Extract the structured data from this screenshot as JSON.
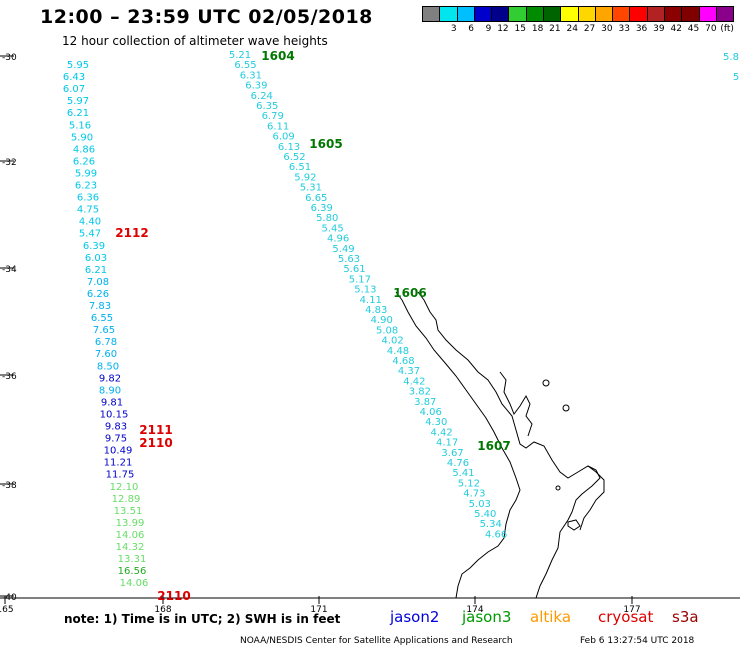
{
  "header": {
    "title": "12:00 – 23:59 UTC 02/05/2018",
    "subtitle": "12 hour collection of altimeter wave heights"
  },
  "legend": {
    "colors": [
      "#808080",
      "#00e5ee",
      "#00bfff",
      "#0000cd",
      "#00008b",
      "#32cd32",
      "#008b00",
      "#006400",
      "#ffff00",
      "#ffd700",
      "#ffa500",
      "#ff4500",
      "#ff0000",
      "#b22222",
      "#8b0000",
      "#800000",
      "#ff00ff",
      "#8b008b"
    ],
    "ticks": [
      "3",
      "6",
      "9",
      "12",
      "15",
      "18",
      "21",
      "24",
      "27",
      "30",
      "33",
      "36",
      "39",
      "42",
      "45",
      "70",
      "(ft)"
    ]
  },
  "axes": {
    "lat_labels": [
      "-30",
      "-32",
      "-34",
      "-36",
      "-38",
      "-40"
    ],
    "lon_labels": [
      "165",
      "168",
      "171",
      "174",
      "177"
    ]
  },
  "tracks": {
    "left_column": [
      {
        "v": "5.95",
        "c": "#00c8e8"
      },
      {
        "v": "6.43",
        "c": "#00c8e8"
      },
      {
        "v": "6.07",
        "c": "#00c8e8"
      },
      {
        "v": "5.97",
        "c": "#00c8e8"
      },
      {
        "v": "6.21",
        "c": "#00c8e8"
      },
      {
        "v": "5.16",
        "c": "#00c8e8"
      },
      {
        "v": "5.90",
        "c": "#00c8e8"
      },
      {
        "v": "4.86",
        "c": "#00c8e8"
      },
      {
        "v": "6.26",
        "c": "#00c8e8"
      },
      {
        "v": "5.99",
        "c": "#00c8e8"
      },
      {
        "v": "6.23",
        "c": "#00c8e8"
      },
      {
        "v": "6.36",
        "c": "#00c8e8"
      },
      {
        "v": "4.75",
        "c": "#00c8e8"
      },
      {
        "v": "4.40",
        "c": "#00c8e8"
      },
      {
        "v": "5.47",
        "c": "#00c8e8"
      },
      {
        "v": "6.39",
        "c": "#00c8e8"
      },
      {
        "v": "6.03",
        "c": "#00c8e8"
      },
      {
        "v": "6.21",
        "c": "#00c8e8"
      },
      {
        "v": "7.08",
        "c": "#00b0f0"
      },
      {
        "v": "6.26",
        "c": "#00b0f0"
      },
      {
        "v": "7.83",
        "c": "#00b0f0"
      },
      {
        "v": "6.55",
        "c": "#00b0f0"
      },
      {
        "v": "7.65",
        "c": "#00b0f0"
      },
      {
        "v": "6.78",
        "c": "#00b0f0"
      },
      {
        "v": "7.60",
        "c": "#00b0f0"
      },
      {
        "v": "8.50",
        "c": "#00b0f0"
      },
      {
        "v": "9.82",
        "c": "#0000cd"
      },
      {
        "v": "8.90",
        "c": "#00b0f0"
      },
      {
        "v": "9.81",
        "c": "#0000cd"
      },
      {
        "v": "10.15",
        "c": "#0000cd"
      },
      {
        "v": "9.83",
        "c": "#0000cd"
      },
      {
        "v": "9.75",
        "c": "#0000cd"
      },
      {
        "v": "10.49",
        "c": "#0000cd"
      },
      {
        "v": "11.21",
        "c": "#0000cd"
      },
      {
        "v": "11.75",
        "c": "#0000cd"
      },
      {
        "v": "12.10",
        "c": "#66dd66"
      },
      {
        "v": "12.89",
        "c": "#66dd66"
      },
      {
        "v": "13.51",
        "c": "#66dd66"
      },
      {
        "v": "13.99",
        "c": "#66dd66"
      },
      {
        "v": "14.06",
        "c": "#66dd66"
      },
      {
        "v": "14.32",
        "c": "#66dd66"
      },
      {
        "v": "13.31",
        "c": "#66dd66"
      },
      {
        "v": "16.56",
        "c": "#22aa22"
      },
      {
        "v": "14.06",
        "c": "#66dd66"
      }
    ],
    "diag_column": [
      "5.21",
      "6.55",
      "6.31",
      "6.39",
      "6.24",
      "6.35",
      "6.79",
      "6.11",
      "6.09",
      "6.13",
      "6.52",
      "6.51",
      "5.92",
      "5.31",
      "6.65",
      "6.39",
      "5.80",
      "5.45",
      "4.96",
      "5.49",
      "5.63",
      "5.61",
      "5.17",
      "5.13",
      "4.11",
      "4.83",
      "4.90",
      "5.08",
      "4.02",
      "4.48",
      "4.68",
      "4.37",
      "4.42",
      "3.82",
      "3.87",
      "4.06",
      "4.30",
      "4.42",
      "4.17",
      "3.67",
      "4.76",
      "5.41",
      "5.12",
      "4.73",
      "5.03",
      "5.40",
      "5.34",
      "4.66"
    ],
    "time_tags": [
      {
        "label": "1604",
        "color": "#007700"
      },
      {
        "label": "1605",
        "color": "#007700"
      },
      {
        "label": "1606",
        "color": "#007700"
      },
      {
        "label": "1607",
        "color": "#007700"
      },
      {
        "label": "2112",
        "color": "#dd0000"
      },
      {
        "label": "2111",
        "color": "#dd0000"
      },
      {
        "label": "2110",
        "color": "#dd0000"
      },
      {
        "label": "2110",
        "color": "#dd0000"
      }
    ],
    "edge_values": [
      "5.8",
      "5"
    ]
  },
  "footer": {
    "note": "note:  1) Time is in UTC;  2) SWH is in feet",
    "missions": [
      {
        "name": "jason2",
        "color": "#0000dd"
      },
      {
        "name": "jason3",
        "color": "#009900"
      },
      {
        "name": "altika",
        "color": "#ff9900"
      },
      {
        "name": "cryosat",
        "color": "#dd0000"
      },
      {
        "name": "s3a",
        "color": "#990000"
      }
    ],
    "credit": "NOAA/NESDIS Center for Satellite Applications and Research",
    "timestamp": "Feb  6 13:27:54 UTC 2018"
  }
}
